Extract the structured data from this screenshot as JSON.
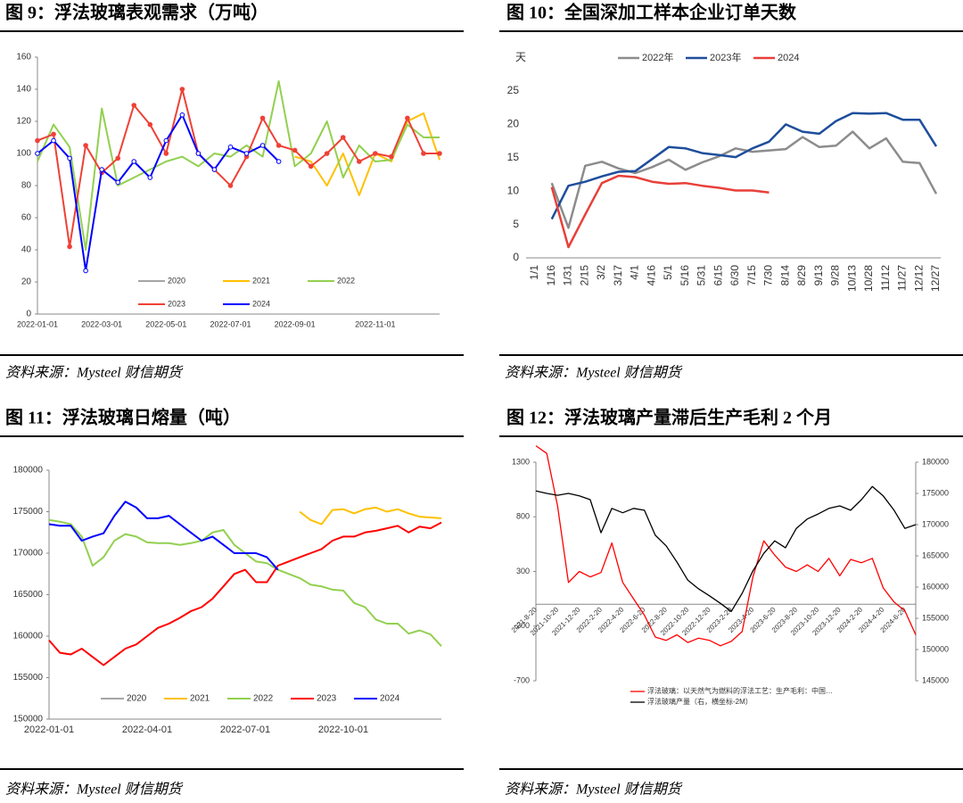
{
  "chart_data": [
    {
      "type": "line",
      "title": "图 9：浮法玻璃表观需求（万吨）",
      "source": "资料来源：Mysteel 财信期货",
      "categories": [
        "2022-01-01",
        null,
        null,
        null,
        "2022-03-01",
        null,
        null,
        null,
        "2022-05-01",
        null,
        null,
        null,
        "2022-07-01",
        null,
        null,
        null,
        "2022-09-01",
        null,
        null,
        null,
        null,
        "2022-11-01",
        null,
        null,
        null,
        null
      ],
      "series": [
        {
          "name": "2020",
          "color": "#a5a5a5",
          "values": [
            null,
            null,
            null,
            null,
            null,
            null,
            null,
            null,
            null,
            null,
            null,
            null,
            null,
            null,
            null,
            null,
            null,
            null,
            null,
            null,
            null,
            null,
            null,
            null,
            null,
            null
          ]
        },
        {
          "name": "2021",
          "color": "#ffc000",
          "values": [
            null,
            null,
            null,
            null,
            null,
            null,
            null,
            null,
            null,
            null,
            null,
            null,
            null,
            null,
            null,
            null,
            98,
            95,
            80,
            100,
            74,
            100,
            95,
            120,
            125,
            96
          ]
        },
        {
          "name": "2022",
          "color": "#92d050",
          "values": [
            95,
            118,
            104,
            40,
            128,
            80,
            85,
            90,
            95,
            98,
            92,
            100,
            98,
            105,
            98,
            145,
            92,
            100,
            120,
            85,
            105,
            95,
            96,
            118,
            110,
            110
          ]
        },
        {
          "name": "2023",
          "color": "#ef4136",
          "marker": "circle",
          "values": [
            108,
            112,
            42,
            105,
            88,
            97,
            130,
            118,
            100,
            140,
            100,
            90,
            80,
            98,
            122,
            105,
            102,
            92,
            100,
            110,
            95,
            100,
            98,
            122,
            100,
            100
          ]
        },
        {
          "name": "2024",
          "color": "#0000ff",
          "marker": "circle",
          "marker_fill": "#ffffff",
          "values": [
            100,
            108,
            97,
            27,
            90,
            82,
            95,
            85,
            108,
            124,
            100,
            90,
            104,
            100,
            105,
            95,
            null,
            null,
            null,
            null,
            null,
            null,
            null,
            null,
            null,
            null
          ]
        }
      ],
      "ylim": [
        0,
        160
      ],
      "yticks": [
        0,
        20,
        40,
        60,
        80,
        100,
        120,
        140,
        160
      ],
      "legend": "bottom"
    },
    {
      "type": "line",
      "title": "图 10：全国深加工样本企业订单天数",
      "source": "资料来源：Mysteel 财信期货",
      "ylabel": "天",
      "categories": [
        "1/1",
        "1/16",
        "1/31",
        "2/15",
        "3/2",
        "3/17",
        "4/1",
        "4/16",
        "5/1",
        "5/16",
        "5/31",
        "6/15",
        "6/30",
        "7/15",
        "7/30",
        "8/14",
        "8/29",
        "9/13",
        "9/28",
        "10/13",
        "10/28",
        "11/12",
        "11/27",
        "12/12",
        "12/27"
      ],
      "series": [
        {
          "name": "2022年",
          "color": "#8c8c8c",
          "values": [
            null,
            11.2,
            4.5,
            13.8,
            14.4,
            13.4,
            12.7,
            13.6,
            14.7,
            13.2,
            14.3,
            15.2,
            16.4,
            15.9,
            16.1,
            16.3,
            18.1,
            16.6,
            16.8,
            18.9,
            16.4,
            17.9,
            14.4,
            14.2,
            9.6
          ]
        },
        {
          "name": "2023年",
          "color": "#1f4e9c",
          "values": [
            null,
            5.8,
            10.8,
            11.4,
            12.2,
            12.9,
            13.0,
            14.8,
            16.6,
            16.4,
            15.7,
            15.4,
            15.1,
            16.4,
            17.4,
            20.0,
            18.9,
            18.6,
            20.5,
            21.7,
            21.6,
            21.7,
            20.7,
            20.7,
            16.7
          ]
        },
        {
          "name": "2024",
          "color": "#e8403a",
          "values": [
            null,
            10.6,
            1.6,
            6.5,
            11.2,
            12.3,
            12.1,
            11.4,
            11.1,
            11.2,
            10.8,
            10.5,
            10.1,
            10.1,
            9.8,
            null,
            null,
            null,
            null,
            null,
            null,
            null,
            null,
            null,
            null
          ]
        }
      ],
      "ylim": [
        0,
        25
      ],
      "yticks": [
        0,
        5,
        10,
        15,
        20,
        25
      ],
      "legend": "top"
    },
    {
      "type": "line",
      "title": "图 11：浮法玻璃日熔量（吨）",
      "source": "资料来源：Mysteel 财信期货",
      "categories": [
        "2022-01-01",
        null,
        null,
        null,
        null,
        null,
        null,
        null,
        null,
        "2022-04-01",
        null,
        null,
        null,
        null,
        null,
        null,
        null,
        null,
        "2022-07-01",
        null,
        null,
        null,
        null,
        null,
        null,
        null,
        null,
        "2022-10-01",
        null,
        null,
        null,
        null,
        null,
        null,
        null,
        null,
        null
      ],
      "series": [
        {
          "name": "2020",
          "color": "#a5a5a5",
          "values": [
            null,
            null,
            null,
            null,
            null,
            null,
            null,
            null,
            null,
            null,
            null,
            null,
            null,
            null,
            null,
            null,
            null,
            null,
            null,
            null,
            null,
            null,
            null,
            null,
            null,
            null,
            null,
            null,
            null,
            null,
            null,
            null,
            null,
            null,
            null,
            null,
            null
          ]
        },
        {
          "name": "2021",
          "color": "#ffc000",
          "values": [
            null,
            null,
            null,
            null,
            null,
            null,
            null,
            null,
            null,
            null,
            null,
            null,
            null,
            null,
            null,
            null,
            null,
            null,
            null,
            null,
            null,
            null,
            null,
            175000,
            174000,
            173500,
            175200,
            175300,
            174800,
            175300,
            175500,
            175000,
            175300,
            174800,
            174400,
            174300,
            174200
          ]
        },
        {
          "name": "2022",
          "color": "#92d050",
          "values": [
            174000,
            173800,
            173500,
            172000,
            168500,
            169500,
            171500,
            172300,
            172000,
            171300,
            171200,
            171200,
            171000,
            171200,
            171500,
            172500,
            172800,
            171000,
            170000,
            169000,
            168800,
            168000,
            167500,
            167000,
            166200,
            166000,
            165600,
            165500,
            164000,
            163500,
            162000,
            161500,
            161500,
            160300,
            160700,
            160200,
            158800
          ]
        },
        {
          "name": "2023",
          "color": "#ff0000",
          "values": [
            159500,
            158000,
            157800,
            158500,
            157500,
            156500,
            157500,
            158500,
            159000,
            160000,
            161000,
            161500,
            162200,
            163000,
            163500,
            164500,
            166000,
            167500,
            168000,
            166500,
            166500,
            168500,
            169000,
            169500,
            170000,
            170500,
            171500,
            172000,
            172000,
            172500,
            172700,
            173000,
            173300,
            172500,
            173200,
            173000,
            173700
          ]
        },
        {
          "name": "2024",
          "color": "#0000ff",
          "values": [
            173500,
            173300,
            173300,
            171500,
            172000,
            172400,
            174500,
            176200,
            175500,
            174200,
            174200,
            174500,
            173500,
            172500,
            171500,
            172000,
            171000,
            170000,
            170000,
            170000,
            169500,
            168000,
            null,
            null,
            null,
            null,
            null,
            null,
            null,
            null,
            null,
            null,
            null,
            null,
            null,
            null,
            null
          ]
        }
      ],
      "ylim": [
        150000,
        180000
      ],
      "yticks": [
        150000,
        155000,
        160000,
        165000,
        170000,
        175000,
        180000
      ],
      "legend": "bottom"
    },
    {
      "type": "line",
      "title": "图 12：浮法玻璃产量滞后生产毛利 2 个月",
      "source": "资料来源：Mysteel 财信期货",
      "categories": [
        "2021-8-20",
        null,
        "2021-10-20",
        null,
        "2021-12-20",
        null,
        "2022-2-20",
        null,
        "2022-4-20",
        null,
        "2022-6-20",
        null,
        "2022-8-20",
        null,
        "2022-10-20",
        null,
        "2022-12-20",
        null,
        "2023-2-20",
        null,
        "2023-4-20",
        null,
        "2023-6-20",
        null,
        "2023-8-20",
        null,
        "2023-10-20",
        null,
        "2023-12-20",
        null,
        "2024-2-20",
        null,
        "2024-4-20",
        null,
        "2024-6-20",
        null
      ],
      "series": [
        {
          "name": "浮法玻璃：以天然气为燃料的浮法工艺：生产毛利：中国…",
          "color": "#ff0000",
          "values": [
            1450,
            1380,
            900,
            200,
            300,
            250,
            290,
            560,
            200,
            50,
            -100,
            -300,
            -330,
            -280,
            -350,
            -310,
            -330,
            -380,
            -340,
            -250,
            250,
            580,
            450,
            340,
            300,
            360,
            300,
            420,
            260,
            410,
            380,
            420,
            150,
            20,
            -60,
            -280
          ]
        },
        {
          "name": "浮法玻璃产量（右，横坐标-2M）",
          "color": "#000000",
          "axis": "y2",
          "values": [
            175400,
            175000,
            174700,
            175000,
            174600,
            174000,
            168700,
            172600,
            171900,
            172600,
            172300,
            168300,
            166600,
            164000,
            161100,
            159700,
            158600,
            157400,
            156100,
            159000,
            162600,
            165400,
            167400,
            166300,
            169400,
            170900,
            171700,
            172600,
            173000,
            172300,
            174000,
            176100,
            174600,
            172300,
            169400,
            170000
          ]
        }
      ],
      "ylim": [
        -700,
        1300
      ],
      "yticks": [
        -700,
        -200,
        300,
        800,
        1300
      ],
      "y2lim": [
        145000,
        180000
      ],
      "y2ticks": [
        145000,
        150000,
        155000,
        160000,
        165000,
        170000,
        175000,
        180000
      ],
      "legend": "bottom"
    }
  ]
}
